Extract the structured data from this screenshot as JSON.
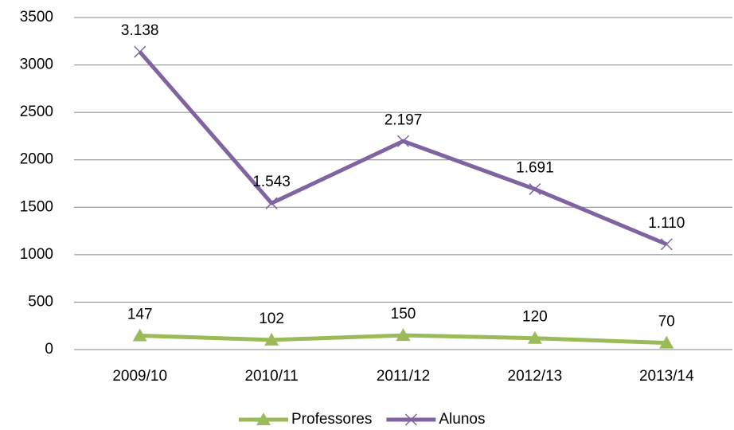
{
  "chart_data": {
    "type": "line",
    "categories": [
      "2009/10",
      "2010/11",
      "2011/12",
      "2012/13",
      "2013/14"
    ],
    "series": [
      {
        "name": "Professores",
        "color": "#9bbb59",
        "marker": "triangle",
        "values": [
          147,
          102,
          150,
          120,
          70
        ]
      },
      {
        "name": "Alunos",
        "color": "#8064a2",
        "marker": "x",
        "values": [
          3138,
          1543,
          2197,
          1691,
          1110
        ],
        "value_labels": [
          "3.138",
          "1.543",
          "2.197",
          "1.691",
          "1.110"
        ]
      }
    ],
    "ylim": [
      0,
      3500
    ],
    "yticks": [
      0,
      500,
      1000,
      1500,
      2000,
      2500,
      3000,
      3500
    ],
    "grid": true,
    "legend": "bottom"
  }
}
